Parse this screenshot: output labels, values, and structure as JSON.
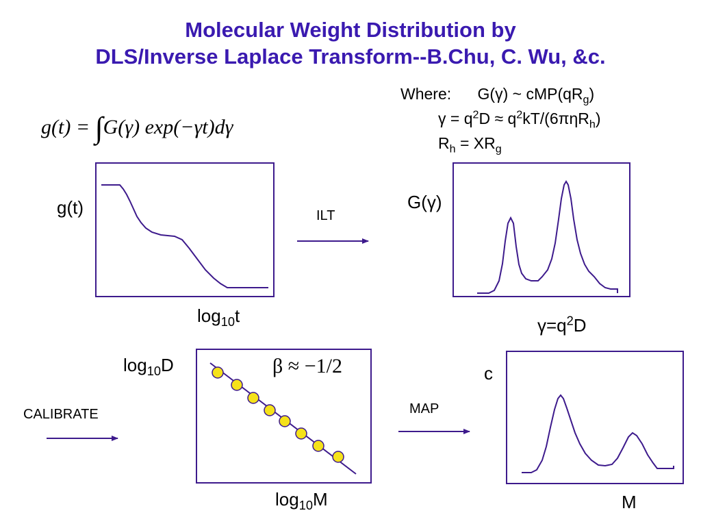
{
  "title": {
    "line1": "Molecular Weight Distribution by",
    "line2": "DLS/Inverse Laplace Transform--B.Chu, C. Wu, &c."
  },
  "equation": {
    "lhs": "g(t) = ",
    "integrand": "G(γ) exp(−γt)dγ"
  },
  "where": {
    "word": "Where:",
    "line1": "G(γ) ~ cMP(qR",
    "line1_sub": "g",
    "line1_end": ")",
    "line2_a": "γ = q",
    "line2_sup1": "2",
    "line2_b": "D ≈ q",
    "line2_sup2": "2",
    "line2_c": "kT/(6πηR",
    "line2_sub": "h",
    "line2_end": ")",
    "line3_a": "R",
    "line3_sub1": "h",
    "line3_b": " = XR",
    "line3_sub2": "g"
  },
  "panels": {
    "gt": {
      "ylabel": "g(t)",
      "xlabel_base": "log",
      "xlabel_sub": "10",
      "xlabel_var": "t"
    },
    "gamma": {
      "ylabel": "G(γ)",
      "xlabel_a": "γ=q",
      "xlabel_sup": "2",
      "xlabel_b": "D"
    },
    "calib": {
      "ylabel_base": "log",
      "ylabel_sub": "10",
      "ylabel_var": "D",
      "xlabel_base": "log",
      "xlabel_sub": "10",
      "xlabel_var": "M",
      "slope_label": "β ≈ −1/2"
    },
    "mw": {
      "ylabel": "c",
      "xlabel": "M"
    }
  },
  "arrows": {
    "ilt": "ILT",
    "calibrate": "CALIBRATE",
    "map": "MAP"
  },
  "colors": {
    "title": "#3a1ab0",
    "frame": "#3d1a8c",
    "curve": "#3d1a8c",
    "marker_fill": "#f5e21a",
    "marker_stroke": "#3d1a8c"
  }
}
